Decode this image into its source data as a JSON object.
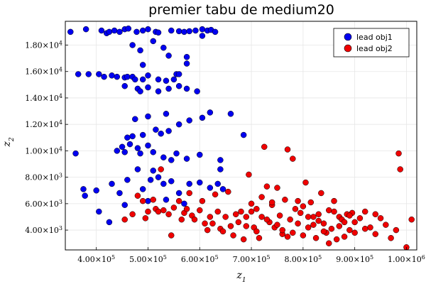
{
  "chart_data": {
    "type": "scatter",
    "title": "premier tabu de medium20",
    "xlabel": "z",
    "xlabel_sub": "1",
    "ylabel": "z",
    "ylabel_sub": "2",
    "xlim": [
      340000,
      1020000
    ],
    "ylim": [
      2500000,
      19800000
    ],
    "xticks": [
      400000,
      500000,
      600000,
      700000,
      800000,
      900000,
      1000000
    ],
    "xtick_labels": [
      {
        "base": "4.00×10",
        "exp": "5"
      },
      {
        "base": "5.00×10",
        "exp": "5"
      },
      {
        "base": "6.00×10",
        "exp": "5"
      },
      {
        "base": "7.00×10",
        "exp": "5"
      },
      {
        "base": "8.00×10",
        "exp": "5"
      },
      {
        "base": "9.00×10",
        "exp": "5"
      },
      {
        "base": "1.00×10",
        "exp": "6"
      }
    ],
    "yticks": [
      4000,
      6000,
      8000,
      10000,
      12000,
      14000,
      16000,
      18000
    ],
    "ytick_labels": [
      {
        "base": "4.00×10",
        "exp": "3"
      },
      {
        "base": "6.00×10",
        "exp": "3"
      },
      {
        "base": "8.00×10",
        "exp": "3"
      },
      {
        "base": "1.00×10",
        "exp": "4"
      },
      {
        "base": "1.20×10",
        "exp": "4"
      },
      {
        "base": "1.40×10",
        "exp": "4"
      },
      {
        "base": "1.60×10",
        "exp": "4"
      },
      {
        "base": "1.80×10",
        "exp": "4"
      }
    ],
    "grid": true,
    "legend_position": "top-right",
    "series": [
      {
        "name": "lead obj1",
        "color": "#0000f0",
        "points": [
          [
            350000,
            19000
          ],
          [
            380000,
            19200
          ],
          [
            410000,
            19100
          ],
          [
            420000,
            18900
          ],
          [
            425000,
            19000
          ],
          [
            435000,
            19100
          ],
          [
            445000,
            19000
          ],
          [
            455000,
            19200
          ],
          [
            462000,
            19250
          ],
          [
            478000,
            19000
          ],
          [
            490000,
            19100
          ],
          [
            500000,
            19200
          ],
          [
            515000,
            19000
          ],
          [
            520000,
            18950
          ],
          [
            545000,
            19100
          ],
          [
            560000,
            19050
          ],
          [
            570000,
            19000
          ],
          [
            580000,
            19050
          ],
          [
            592000,
            19100
          ],
          [
            605000,
            19200
          ],
          [
            615000,
            19100
          ],
          [
            622000,
            19150
          ],
          [
            630000,
            19000
          ],
          [
            605000,
            18700
          ],
          [
            470000,
            18000
          ],
          [
            485000,
            17600
          ],
          [
            510000,
            18300
          ],
          [
            530000,
            17800
          ],
          [
            540000,
            17200
          ],
          [
            575000,
            17100
          ],
          [
            365000,
            15800
          ],
          [
            385000,
            15800
          ],
          [
            405000,
            15800
          ],
          [
            415000,
            15600
          ],
          [
            430000,
            15700
          ],
          [
            440000,
            15600
          ],
          [
            455000,
            15550
          ],
          [
            460000,
            15600
          ],
          [
            470000,
            15600
          ],
          [
            475000,
            15400
          ],
          [
            490000,
            15400
          ],
          [
            500000,
            15700
          ],
          [
            520000,
            15400
          ],
          [
            535000,
            15300
          ],
          [
            550000,
            15400
          ],
          [
            555000,
            15800
          ],
          [
            560000,
            15800
          ],
          [
            575000,
            16600
          ],
          [
            490000,
            16500
          ],
          [
            455000,
            14900
          ],
          [
            480000,
            14700
          ],
          [
            485000,
            14500
          ],
          [
            500000,
            14800
          ],
          [
            520000,
            14500
          ],
          [
            540000,
            14700
          ],
          [
            560000,
            14900
          ],
          [
            575000,
            14700
          ],
          [
            595000,
            14500
          ],
          [
            620000,
            12900
          ],
          [
            605000,
            12500
          ],
          [
            580000,
            12300
          ],
          [
            560000,
            12000
          ],
          [
            535000,
            12800
          ],
          [
            540000,
            11500
          ],
          [
            525000,
            11300
          ],
          [
            515000,
            11600
          ],
          [
            500000,
            12600
          ],
          [
            490000,
            11200
          ],
          [
            470000,
            11100
          ],
          [
            475000,
            12400
          ],
          [
            460000,
            11000
          ],
          [
            450000,
            10300
          ],
          [
            440000,
            10000
          ],
          [
            455000,
            9900
          ],
          [
            465000,
            10500
          ],
          [
            480000,
            10200
          ],
          [
            485000,
            9800
          ],
          [
            500000,
            10400
          ],
          [
            510000,
            9900
          ],
          [
            530000,
            9500
          ],
          [
            545000,
            9300
          ],
          [
            555000,
            9800
          ],
          [
            575000,
            9400
          ],
          [
            600000,
            9700
          ],
          [
            640000,
            9300
          ],
          [
            660000,
            12800
          ],
          [
            685000,
            11200
          ],
          [
            360000,
            9800
          ],
          [
            375000,
            7100
          ],
          [
            378000,
            6600
          ],
          [
            400000,
            7000
          ],
          [
            405000,
            5400
          ],
          [
            425000,
            4600
          ],
          [
            430000,
            7500
          ],
          [
            445000,
            6800
          ],
          [
            455000,
            5900
          ],
          [
            460000,
            7800
          ],
          [
            480000,
            8600
          ],
          [
            490000,
            7100
          ],
          [
            500000,
            6200
          ],
          [
            505000,
            7800
          ],
          [
            520000,
            8000
          ],
          [
            530000,
            7500
          ],
          [
            535000,
            6300
          ],
          [
            545000,
            7700
          ],
          [
            560000,
            6800
          ],
          [
            570000,
            6000
          ],
          [
            580000,
            7500
          ],
          [
            600000,
            7600
          ],
          [
            620000,
            7200
          ],
          [
            635000,
            7500
          ],
          [
            645000,
            7100
          ],
          [
            640000,
            8600
          ],
          [
            510000,
            8500
          ]
        ]
      },
      {
        "name": "lead obj2",
        "color": "#f00000",
        "points": [
          [
            455000,
            4800
          ],
          [
            470000,
            5200
          ],
          [
            480000,
            6600
          ],
          [
            490000,
            6200
          ],
          [
            495000,
            4900
          ],
          [
            500000,
            5400
          ],
          [
            510000,
            6300
          ],
          [
            515000,
            5600
          ],
          [
            520000,
            5400
          ],
          [
            525000,
            8600
          ],
          [
            530000,
            5500
          ],
          [
            540000,
            5200
          ],
          [
            545000,
            3600
          ],
          [
            550000,
            5700
          ],
          [
            560000,
            6200
          ],
          [
            565000,
            4800
          ],
          [
            570000,
            5300
          ],
          [
            575000,
            5600
          ],
          [
            580000,
            6800
          ],
          [
            585000,
            5100
          ],
          [
            590000,
            4800
          ],
          [
            600000,
            5500
          ],
          [
            605000,
            6200
          ],
          [
            610000,
            4500
          ],
          [
            615000,
            4000
          ],
          [
            620000,
            5000
          ],
          [
            625000,
            4500
          ],
          [
            630000,
            6700
          ],
          [
            635000,
            5400
          ],
          [
            640000,
            4100
          ],
          [
            645000,
            3900
          ],
          [
            650000,
            5000
          ],
          [
            655000,
            6900
          ],
          [
            660000,
            4300
          ],
          [
            665000,
            3600
          ],
          [
            670000,
            5200
          ],
          [
            675000,
            4600
          ],
          [
            680000,
            5400
          ],
          [
            685000,
            3300
          ],
          [
            690000,
            5000
          ],
          [
            695000,
            8200
          ],
          [
            700000,
            5400
          ],
          [
            705000,
            4200
          ],
          [
            710000,
            5600
          ],
          [
            715000,
            3400
          ],
          [
            720000,
            5000
          ],
          [
            725000,
            10300
          ],
          [
            730000,
            7300
          ],
          [
            735000,
            4600
          ],
          [
            740000,
            5900
          ],
          [
            745000,
            4200
          ],
          [
            750000,
            7200
          ],
          [
            755000,
            5100
          ],
          [
            760000,
            3700
          ],
          [
            765000,
            6300
          ],
          [
            770000,
            10100
          ],
          [
            775000,
            4800
          ],
          [
            780000,
            9400
          ],
          [
            785000,
            5600
          ],
          [
            790000,
            4500
          ],
          [
            795000,
            5300
          ],
          [
            800000,
            3600
          ],
          [
            805000,
            7600
          ],
          [
            810000,
            4200
          ],
          [
            815000,
            6100
          ],
          [
            820000,
            5000
          ],
          [
            825000,
            3400
          ],
          [
            830000,
            5200
          ],
          [
            835000,
            6800
          ],
          [
            840000,
            4500
          ],
          [
            845000,
            3800
          ],
          [
            850000,
            5500
          ],
          [
            855000,
            4100
          ],
          [
            860000,
            6200
          ],
          [
            865000,
            3300
          ],
          [
            870000,
            5000
          ],
          [
            875000,
            4800
          ],
          [
            880000,
            3500
          ],
          [
            885000,
            5200
          ],
          [
            890000,
            4000
          ],
          [
            895000,
            5300
          ],
          [
            900000,
            4600
          ],
          [
            910000,
            4900
          ],
          [
            920000,
            5400
          ],
          [
            930000,
            4200
          ],
          [
            940000,
            3700
          ],
          [
            950000,
            4900
          ],
          [
            960000,
            4400
          ],
          [
            970000,
            3400
          ],
          [
            980000,
            4000
          ],
          [
            985000,
            9800
          ],
          [
            988000,
            8600
          ],
          [
            1000000,
            2700
          ],
          [
            1010000,
            4800
          ],
          [
            700000,
            6000
          ],
          [
            720000,
            6500
          ],
          [
            740000,
            6100
          ],
          [
            760000,
            4000
          ],
          [
            780000,
            3800
          ],
          [
            800000,
            5800
          ],
          [
            820000,
            4400
          ],
          [
            840000,
            3900
          ],
          [
            860000,
            5400
          ],
          [
            880000,
            4600
          ],
          [
            900000,
            3800
          ],
          [
            920000,
            4100
          ],
          [
            690000,
            4300
          ],
          [
            710000,
            3900
          ],
          [
            730000,
            4800
          ],
          [
            750000,
            4400
          ],
          [
            770000,
            3500
          ],
          [
            790000,
            6200
          ],
          [
            810000,
            5000
          ],
          [
            830000,
            4700
          ],
          [
            850000,
            3000
          ],
          [
            870000,
            4300
          ],
          [
            890000,
            5100
          ],
          [
            940000,
            5200
          ]
        ]
      }
    ]
  }
}
